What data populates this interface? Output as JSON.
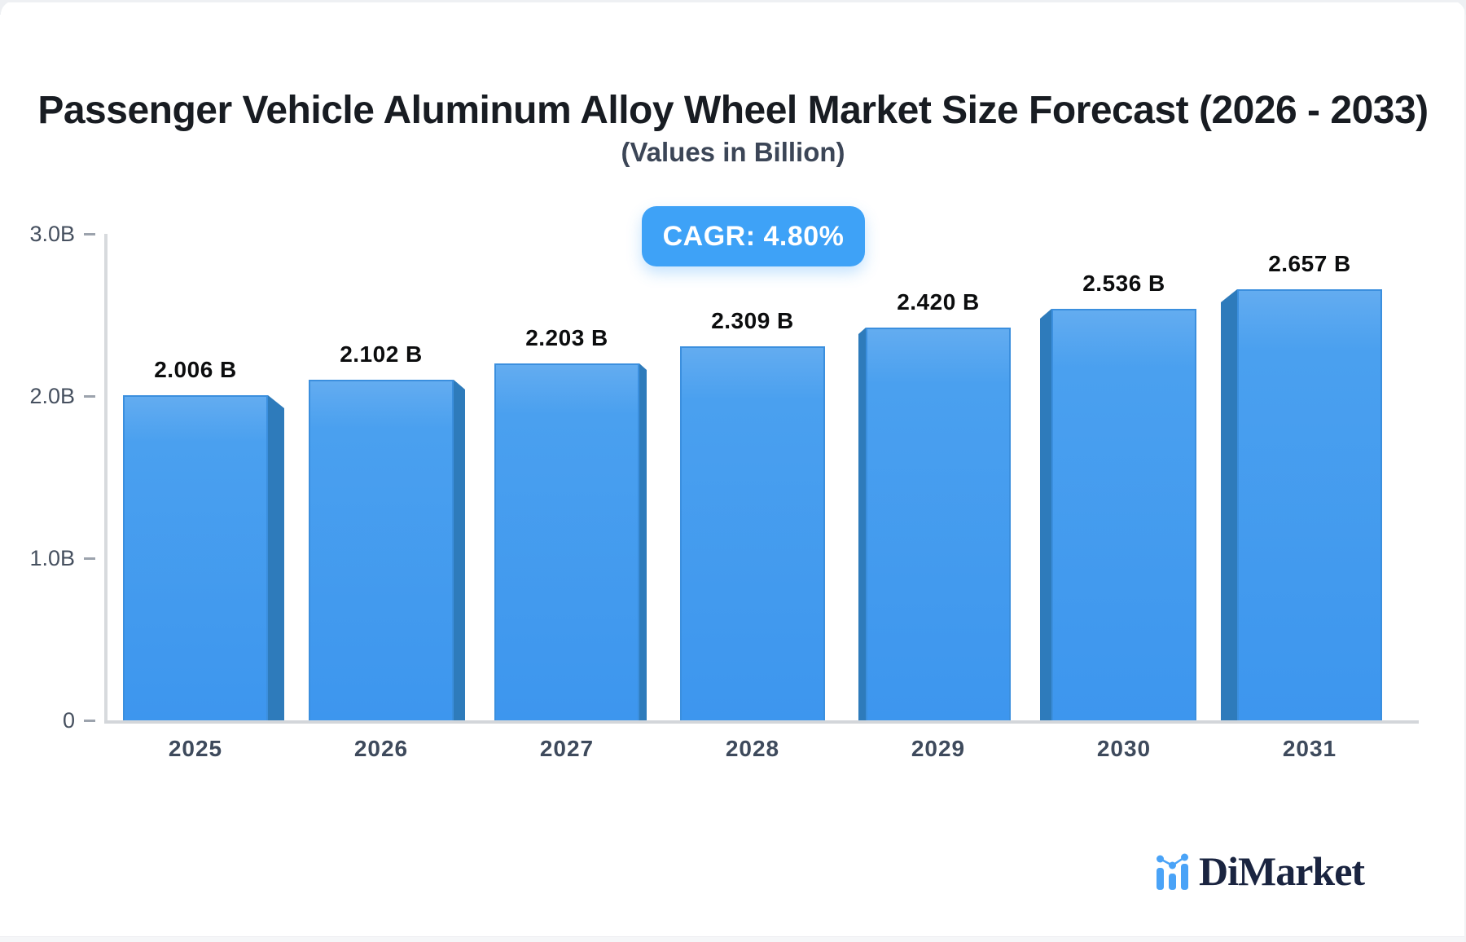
{
  "page": {
    "title": "Passenger Vehicle Aluminum Alloy Wheel Market Size Forecast (2026 - 2033)",
    "subtitle": "(Values in Billion)",
    "cagr_badge": "CAGR: 4.80%",
    "brand": {
      "name": "DiMarket",
      "icon": "mini-bar-line-chart-icon"
    }
  },
  "colors": {
    "accent": "#3ea2f7",
    "bar_face_top": "#63acf0",
    "bar_face_bottom": "#3d96ee",
    "bar_face_border": "#3b8fde",
    "bar_side": "#2e7bbb",
    "axis_line": "#d5d8dc",
    "title_text": "#181c22",
    "subtitle_text": "#3c4657",
    "tick_text": "#46505f",
    "brand_text": "#1a2440",
    "brand_icon_blue": "#4aa3f7"
  },
  "chart_data": {
    "type": "bar",
    "title": "Passenger Vehicle Aluminum Alloy Wheel Market Size Forecast (2026 - 2033)",
    "subtitle": "(Values in Billion)",
    "annotation": "CAGR: 4.80%",
    "categories": [
      "2025",
      "2026",
      "2027",
      "2028",
      "2029",
      "2030",
      "2031"
    ],
    "values": [
      2.006,
      2.102,
      2.203,
      2.309,
      2.42,
      2.536,
      2.657
    ],
    "value_labels": [
      "2.006 B",
      "2.102 B",
      "2.203 B",
      "2.309 B",
      "2.420 B",
      "2.536 B",
      "2.657 B"
    ],
    "xlabel": "",
    "ylabel": "",
    "ylim": [
      0,
      3
    ],
    "yticks": [
      {
        "label": "0",
        "value": 0
      },
      {
        "label": "1.0B",
        "value": 1
      },
      {
        "label": "2.0B",
        "value": 2
      },
      {
        "label": "3.0B",
        "value": 3
      }
    ],
    "grid": false,
    "legend": "none",
    "bar_style": "3d-perspective"
  }
}
